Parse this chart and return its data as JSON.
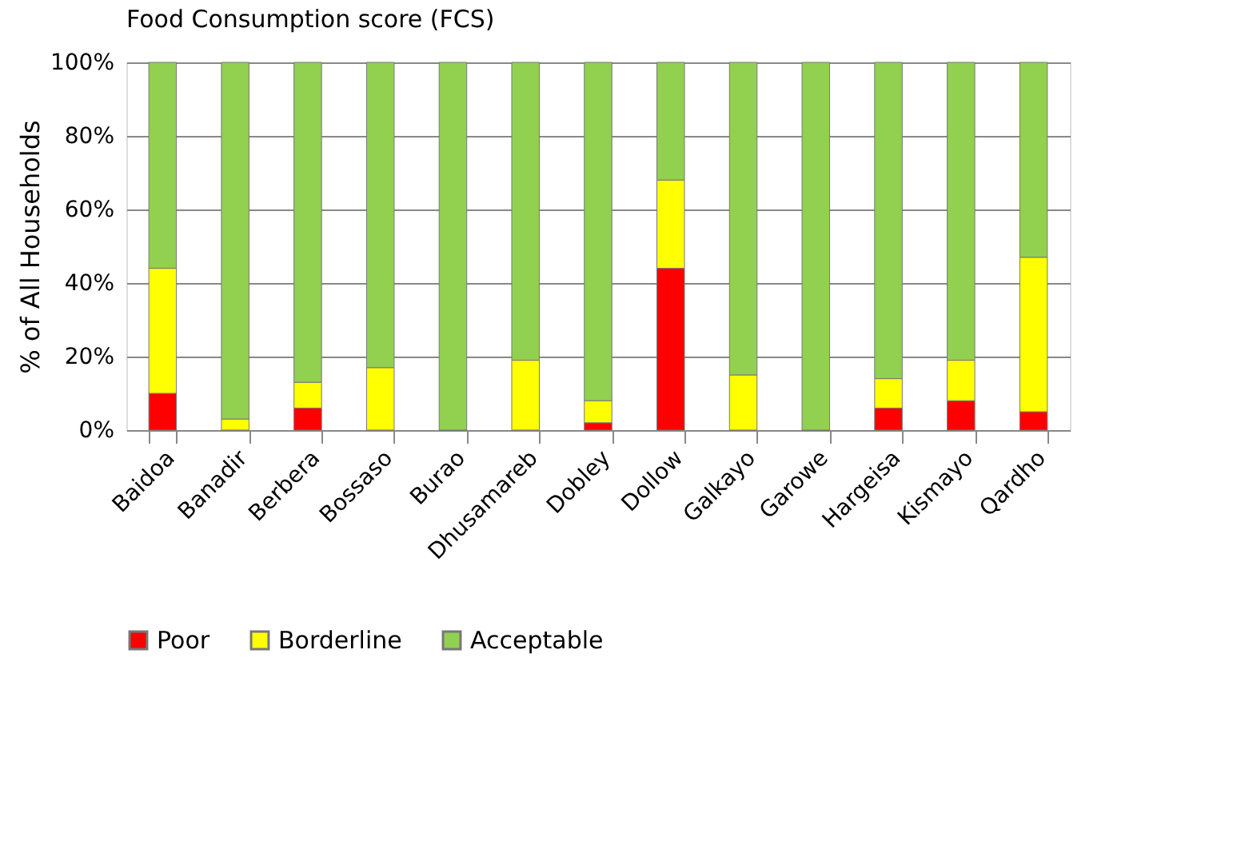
{
  "chart_data": {
    "type": "bar",
    "title": "Food Consumption score (FCS)",
    "ylabel": "% of All Households",
    "categories": [
      "Baidoa",
      "Banadir",
      "Berbera",
      "Bossaso",
      "Burao",
      "Dhusamareb",
      "Dobley",
      "Dollow",
      "Galkayo",
      "Garowe",
      "Hargeisa",
      "Kismayo",
      "Qardho"
    ],
    "stacked": true,
    "series": [
      {
        "name": "Poor",
        "color": "#ff0000",
        "values": [
          10,
          0,
          6,
          0,
          0,
          0,
          2,
          44,
          0,
          0,
          6,
          8,
          5
        ]
      },
      {
        "name": "Borderline",
        "color": "#ffff00",
        "values": [
          34,
          3,
          7,
          17,
          0,
          19,
          6,
          24,
          15,
          0,
          8,
          11,
          42
        ]
      },
      {
        "name": "Acceptable",
        "color": "#92d050",
        "values": [
          56,
          97,
          87,
          83,
          100,
          81,
          92,
          32,
          85,
          100,
          86,
          81,
          53
        ]
      }
    ],
    "ylim": [
      0,
      100
    ],
    "yticks": [
      {
        "value": 0,
        "label": "0%"
      },
      {
        "value": 20,
        "label": "20%"
      },
      {
        "value": 40,
        "label": "40%"
      },
      {
        "value": 60,
        "label": "60%"
      },
      {
        "value": 80,
        "label": "80%"
      },
      {
        "value": 100,
        "label": "100%"
      }
    ],
    "grid": "y",
    "legend": "bottom"
  }
}
